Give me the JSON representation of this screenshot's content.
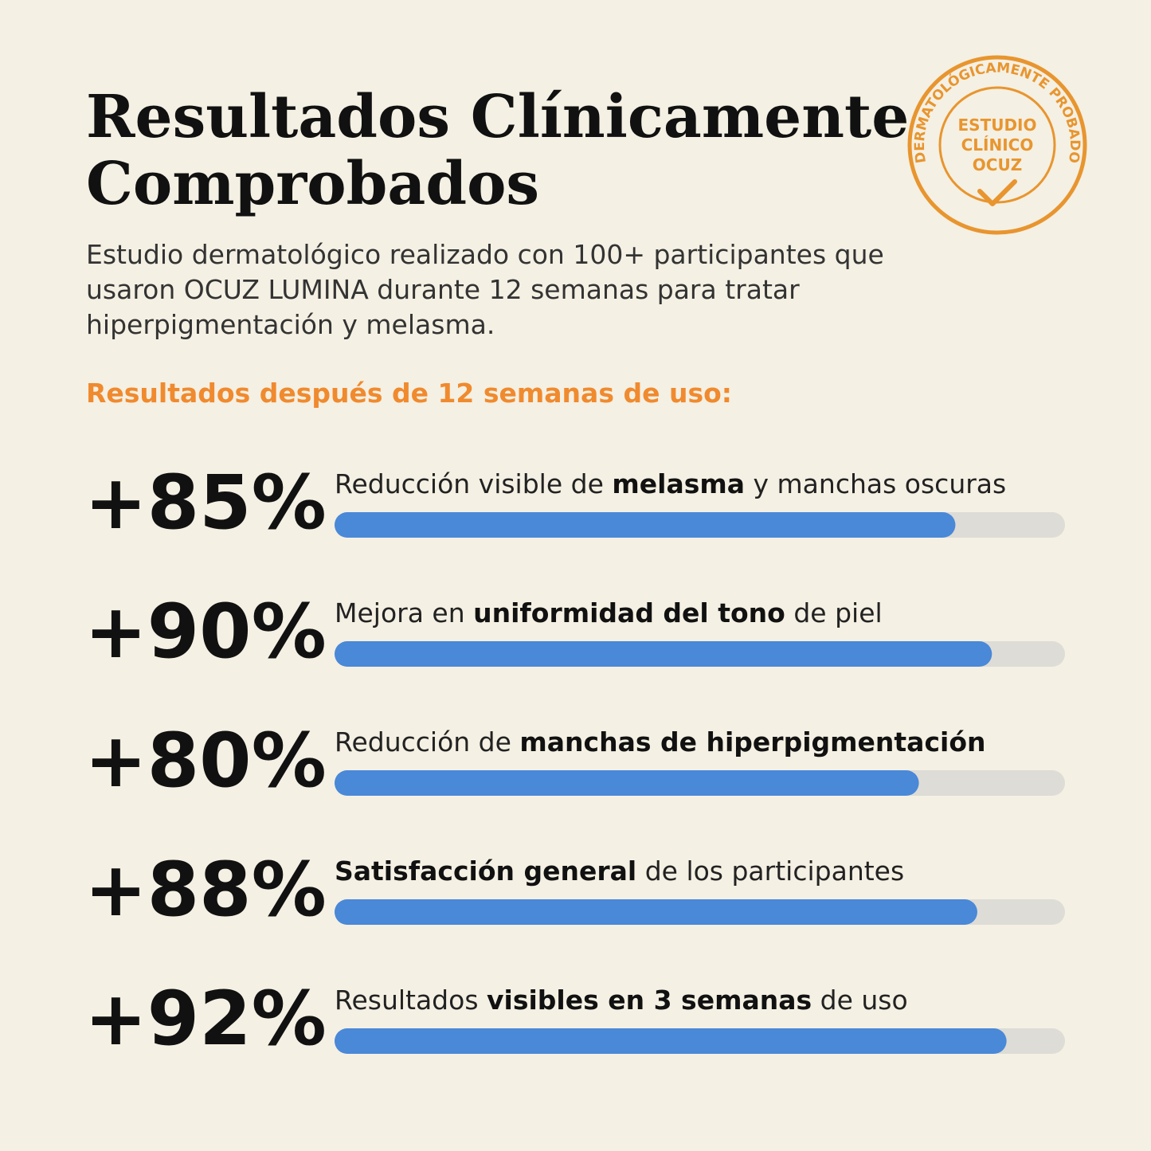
{
  "header": {
    "title_lines": [
      "Resultados Clínicamente",
      "Comprobados"
    ],
    "subtitle_lines": [
      "Estudio dermatológico realizado con 100+ participantes que",
      "usaron OCUZ LUMINA durante 12 semanas para tratar",
      "hiperpigmentación y melasma."
    ],
    "section_heading": "Resultados después de 12 semanas de uso:"
  },
  "stamp": {
    "ring_text": "DERMATOLÓGICAMENTE PROBADO",
    "center_lines": [
      "ESTUDIO",
      "CLÍNICO",
      "OCUZ"
    ],
    "color": "#e8952f"
  },
  "results": {
    "xlim": [
      0,
      100
    ],
    "bar_color": "#4a88d8",
    "track_color": "#dddcd6",
    "items": [
      {
        "value": 85,
        "value_label": "+85%",
        "parts": [
          {
            "text": "Reducción visible de "
          },
          {
            "text": "melasma",
            "bold": true
          },
          {
            "text": " y manchas oscuras"
          }
        ]
      },
      {
        "value": 90,
        "value_label": "+90%",
        "parts": [
          {
            "text": "Mejora en "
          },
          {
            "text": "uniformidad del tono",
            "bold": true
          },
          {
            "text": " de piel"
          }
        ]
      },
      {
        "value": 80,
        "value_label": "+80%",
        "parts": [
          {
            "text": "Reducción de "
          },
          {
            "text": "manchas de hiperpigmentación",
            "bold": true
          }
        ]
      },
      {
        "value": 88,
        "value_label": "+88%",
        "parts": [
          {
            "text": "Satisfacción general",
            "bold": true
          },
          {
            "text": " de los participantes"
          }
        ]
      },
      {
        "value": 92,
        "value_label": "+92%",
        "parts": [
          {
            "text": "Resultados "
          },
          {
            "text": "visibles en 3 semanas",
            "bold": true
          },
          {
            "text": " de uso"
          }
        ]
      }
    ]
  }
}
